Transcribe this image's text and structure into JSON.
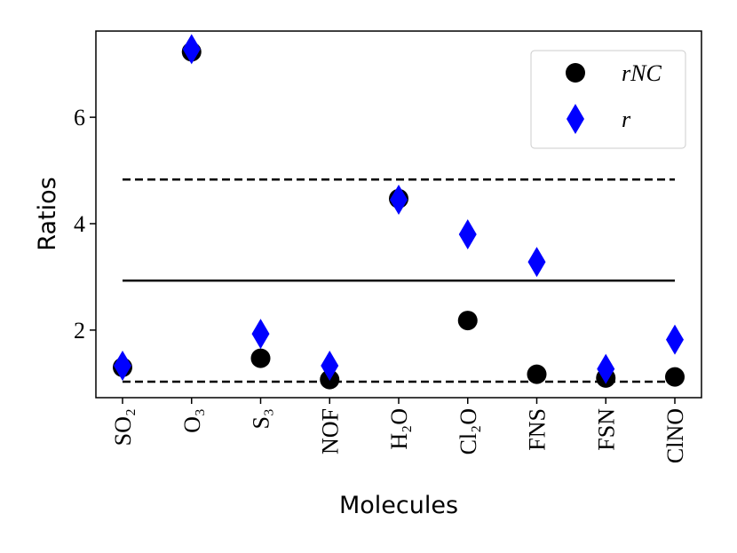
{
  "chart_data": {
    "type": "scatter",
    "xlabel": "Molecules",
    "ylabel": "Ratios",
    "categories": [
      "SO₂",
      "O₃",
      "S₃",
      "NOF",
      "H₂O",
      "Cl₂O",
      "FNS",
      "FSN",
      "ClNO"
    ],
    "series": [
      {
        "name": "rNC",
        "color": "#000000",
        "marker": "circle",
        "values": [
          1.3,
          7.23,
          1.47,
          1.07,
          4.47,
          2.18,
          1.17,
          1.1,
          1.12
        ]
      },
      {
        "name": "r",
        "color": "#0000ff",
        "marker": "diamond",
        "values": [
          1.33,
          7.28,
          1.93,
          1.33,
          4.45,
          3.8,
          3.28,
          1.27,
          1.82
        ]
      }
    ],
    "hlines": [
      {
        "value": 4.83,
        "style": "dashed"
      },
      {
        "value": 2.93,
        "style": "solid"
      },
      {
        "value": 1.03,
        "style": "dashed"
      }
    ],
    "ylim": [
      0.73,
      7.62
    ],
    "yticks": [
      2,
      4,
      6
    ],
    "legend": "upper right"
  }
}
